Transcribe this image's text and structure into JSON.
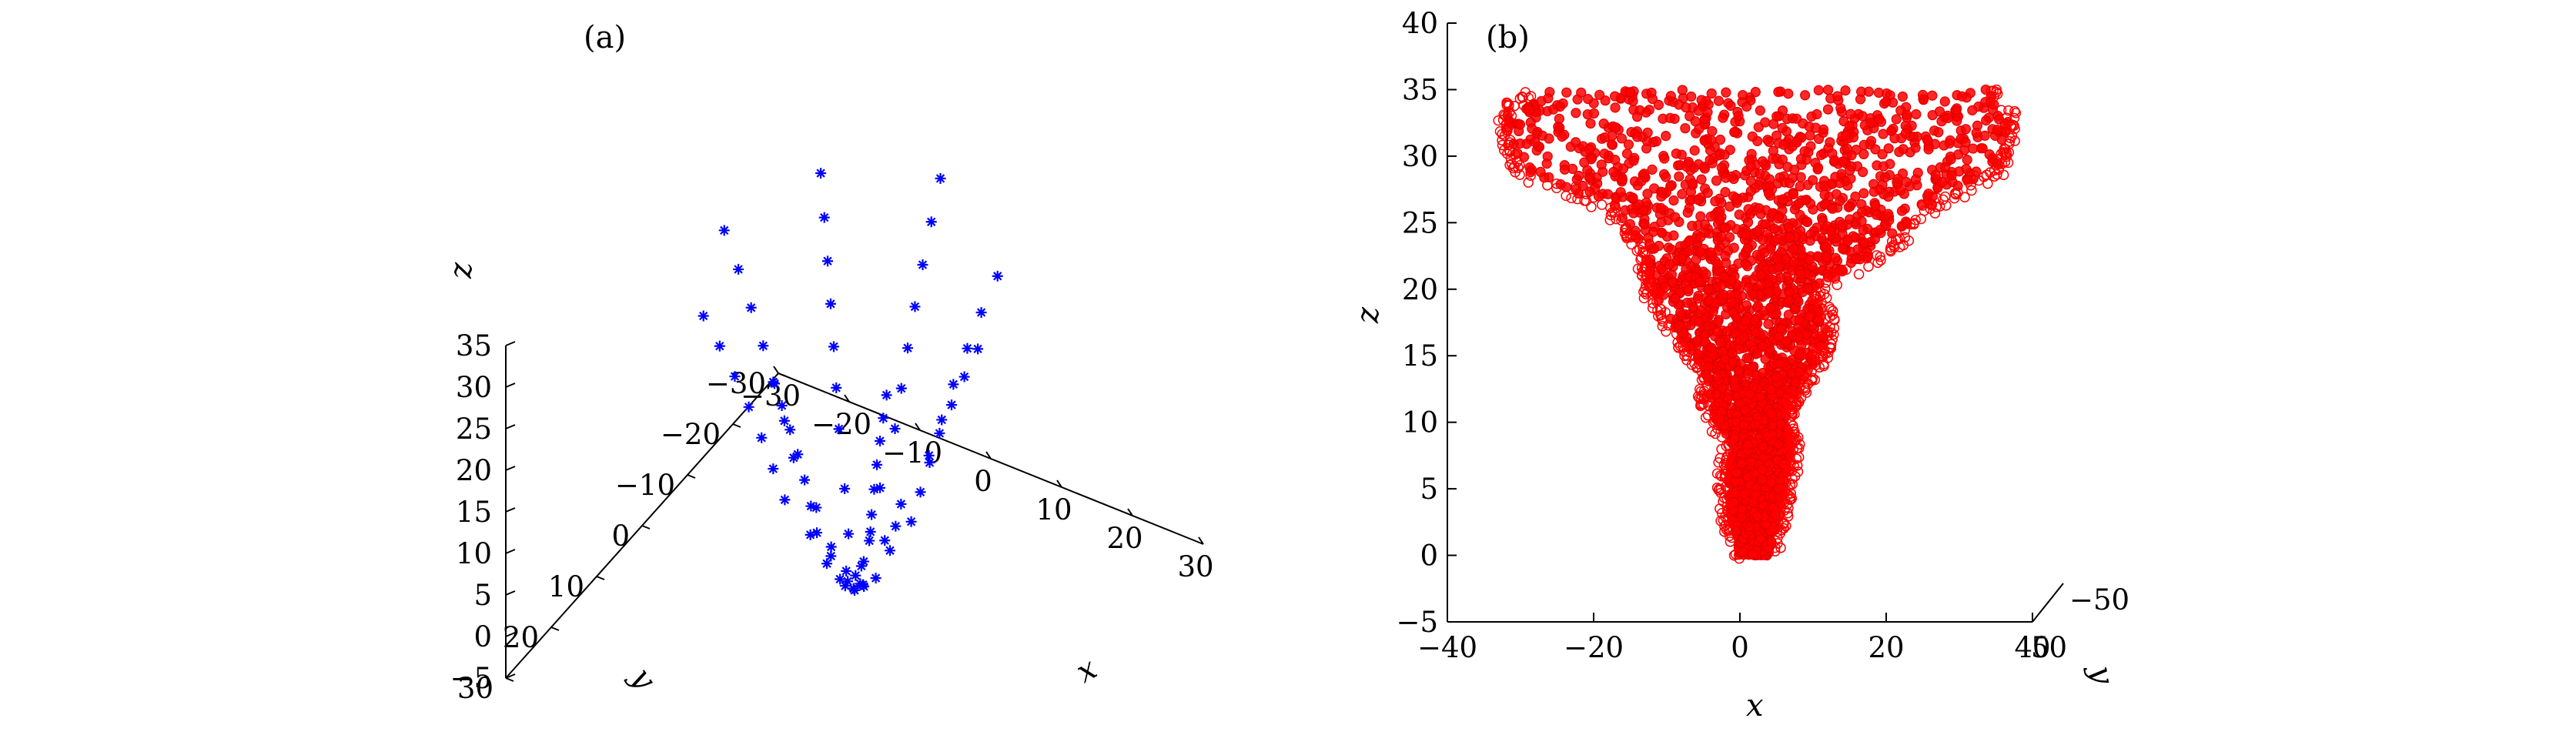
{
  "chart_data": [
    {
      "type": "scatter3d",
      "panel_label": "(a)",
      "marker": "star",
      "series": [
        {
          "color": "#0000ff",
          "description": "expanding conical helix of star markers, z rising from about -3 to about 36, radius growing with z",
          "points": [
            [
              0,
              0,
              -2.5
            ],
            [
              -1,
              0.5,
              -2
            ],
            [
              1,
              -0.5,
              -2
            ],
            [
              0.5,
              1,
              -1.5
            ],
            [
              -0.5,
              -1,
              -1.5
            ],
            [
              1.5,
              0.5,
              -1
            ],
            [
              -1.5,
              -0.5,
              -1
            ],
            [
              0,
              1.5,
              -0.5
            ],
            [
              0,
              -1.5,
              -0.5
            ],
            [
              3,
              0,
              0
            ],
            [
              2.2,
              2.2,
              0.4
            ],
            [
              0,
              3.2,
              0.8
            ],
            [
              -2.5,
              2.2,
              1.2
            ],
            [
              -3.3,
              0,
              1.6
            ],
            [
              -2.4,
              -2.4,
              2
            ],
            [
              0,
              -3.5,
              2.4
            ],
            [
              2.6,
              -2.6,
              2.8
            ],
            [
              5,
              0,
              4
            ],
            [
              3.6,
              3.6,
              4.4
            ],
            [
              0,
              5.2,
              4.8
            ],
            [
              -3.8,
              3.8,
              5.2
            ],
            [
              -5.4,
              0,
              5.6
            ],
            [
              -3.9,
              -3.9,
              6
            ],
            [
              0,
              -5.6,
              6.4
            ],
            [
              4,
              -4,
              6.8
            ],
            [
              5.8,
              0,
              7.2
            ],
            [
              8,
              0,
              8.5
            ],
            [
              5.8,
              5.8,
              9
            ],
            [
              0,
              8.3,
              9.5
            ],
            [
              -6,
              6,
              10
            ],
            [
              -8.6,
              0,
              10.5
            ],
            [
              -6.2,
              -6.2,
              11
            ],
            [
              0,
              -8.9,
              11.5
            ],
            [
              6.4,
              -6.4,
              12
            ],
            [
              9.3,
              0,
              12.5
            ],
            [
              6.7,
              6.7,
              13
            ],
            [
              0,
              9.6,
              13.5
            ],
            [
              -7,
              7,
              14
            ],
            [
              -9.9,
              0,
              14.5
            ],
            [
              -7.2,
              -7.2,
              15
            ],
            [
              0,
              -10.3,
              15.5
            ],
            [
              7.5,
              -7.5,
              16
            ],
            [
              10.6,
              0,
              16.5
            ],
            [
              7.7,
              7.7,
              17
            ],
            [
              0,
              11,
              17.5
            ],
            [
              -8,
              8,
              18
            ],
            [
              -11.3,
              0,
              18.5
            ],
            [
              -8.2,
              -8.2,
              19
            ],
            [
              0,
              -11.7,
              19.5
            ],
            [
              8.5,
              -8.5,
              20
            ],
            [
              12,
              0,
              20.5
            ],
            [
              8.8,
              8.8,
              21
            ],
            [
              0,
              12.5,
              21.5
            ],
            [
              -9.1,
              9.1,
              22
            ],
            [
              -12.9,
              0,
              22.5
            ],
            [
              -9.4,
              -9.4,
              23
            ],
            [
              0,
              -13.3,
              23.5
            ],
            [
              9.7,
              -9.7,
              24
            ],
            [
              13.7,
              0,
              24.5
            ],
            [
              10,
              10,
              25
            ],
            [
              0,
              14.2,
              25.5
            ],
            [
              -10.3,
              10.3,
              26
            ],
            [
              -14.6,
              0,
              26.5
            ],
            [
              -10.6,
              -10.6,
              27
            ],
            [
              0,
              -15,
              27.5
            ],
            [
              10.9,
              -10.9,
              28
            ],
            [
              15.5,
              0,
              28.5
            ],
            [
              11.3,
              11.3,
              29
            ],
            [
              0,
              16,
              29.5
            ],
            [
              -11.6,
              11.6,
              30
            ],
            [
              -16.4,
              0,
              30.5
            ],
            [
              -11.9,
              -11.9,
              31
            ],
            [
              0,
              -16.9,
              31.5
            ],
            [
              12.3,
              -12.3,
              32
            ],
            [
              17.4,
              0,
              32.5
            ],
            [
              12.6,
              12.6,
              33
            ],
            [
              0,
              17.9,
              33.5
            ],
            [
              -13,
              13,
              34
            ],
            [
              -18.4,
              0,
              34.5
            ],
            [
              -13.3,
              -13.3,
              35
            ],
            [
              0,
              -18.9,
              35.5
            ]
          ]
        }
      ],
      "xlabel": "x",
      "ylabel": "y",
      "zlabel": "z",
      "xlim": [
        -30,
        30
      ],
      "ylim": [
        -30,
        30
      ],
      "zlim": [
        -5,
        35
      ],
      "xticks": [
        "−30",
        "−20",
        "−10",
        "0",
        "10",
        "20",
        "30"
      ],
      "yticks": [
        "−30",
        "−20",
        "−10",
        "0",
        "10",
        "20",
        "30"
      ],
      "zticks": [
        "−5",
        "0",
        "5",
        "10",
        "15",
        "20",
        "25",
        "30",
        "35"
      ],
      "grid": false
    },
    {
      "type": "scatter",
      "panel_label": "(b)",
      "marker": "circle",
      "series": [
        {
          "color": "#ff0000",
          "description": "dense cloud of red circles forming a funnel/vortex shape viewed in x-z projection; narrow near z=0, widening toward z≈35",
          "envelope": [
            {
              "z": 0,
              "x_min": 0,
              "x_max": 4
            },
            {
              "z": 5,
              "x_min": -2,
              "x_max": 6
            },
            {
              "z": 8,
              "x_min": -1,
              "x_max": 7
            },
            {
              "z": 11,
              "x_min": -4,
              "x_max": 6
            },
            {
              "z": 14,
              "x_min": -5,
              "x_max": 10
            },
            {
              "z": 17,
              "x_min": -9,
              "x_max": 12
            },
            {
              "z": 20,
              "x_min": -12,
              "x_max": 10
            },
            {
              "z": 23,
              "x_min": -13,
              "x_max": 20
            },
            {
              "z": 26,
              "x_min": -17,
              "x_max": 25
            },
            {
              "z": 29,
              "x_min": -30,
              "x_max": 35
            },
            {
              "z": 33,
              "x_min": -32,
              "x_max": 37
            },
            {
              "z": 35,
              "x_min": -28,
              "x_max": 34
            }
          ]
        }
      ],
      "xlabel": "x",
      "ylabel": "y",
      "zlabel": "z",
      "xlim": [
        -40,
        40
      ],
      "ylim": [
        -50,
        50
      ],
      "zlim": [
        -5,
        40
      ],
      "xticks": [
        "−40",
        "−20",
        "0",
        "20",
        "40"
      ],
      "yticks": [
        "−50",
        "50"
      ],
      "zticks": [
        "−5",
        "0",
        "5",
        "10",
        "15",
        "20",
        "25",
        "30",
        "35",
        "40"
      ],
      "grid": false
    }
  ]
}
